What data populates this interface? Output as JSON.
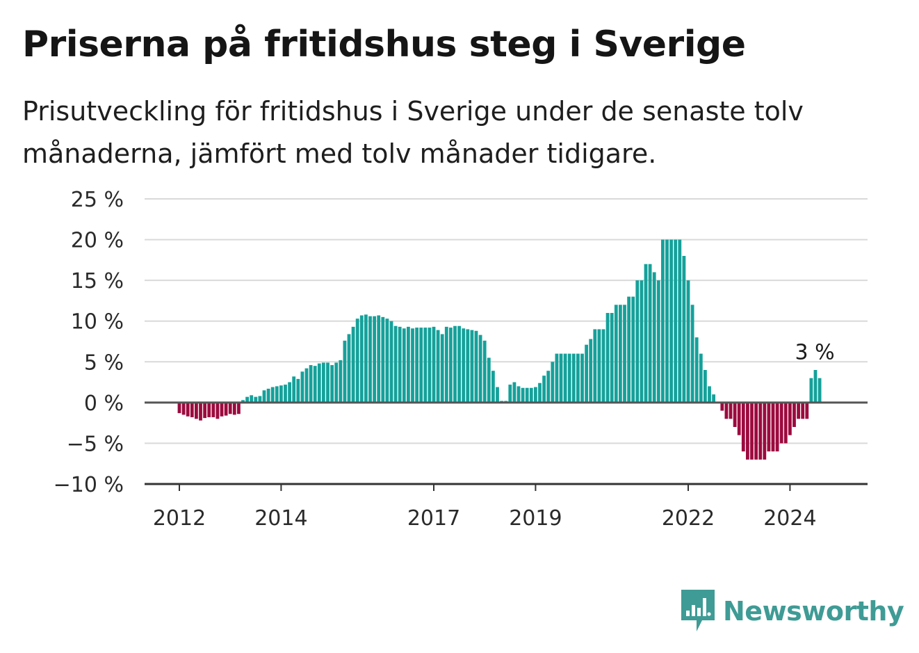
{
  "title": "Priserna på fritidshus steg i Sverige",
  "subtitle": "Prisutveckling för fritidshus i Sverige under de senaste tolv månaderna, jämfört med tolv månader tidigare.",
  "logo": {
    "text": "Newsworthy",
    "icon": "bar-chart-speech-bubble-icon",
    "color": "#3f9b95"
  },
  "colors": {
    "positive": "#15a19a",
    "negative": "#9c0a3e",
    "grid": "#d9d9d9",
    "zero_line": "#555555"
  },
  "chart_data": {
    "type": "bar",
    "title": "Priserna på fritidshus steg i Sverige",
    "xlabel": "",
    "ylabel": "",
    "ylim": [
      -10,
      25
    ],
    "y_ticks": [
      {
        "value": 25,
        "label": "25 %"
      },
      {
        "value": 20,
        "label": "20 %"
      },
      {
        "value": 15,
        "label": "15 %"
      },
      {
        "value": 10,
        "label": "10 %"
      },
      {
        "value": 5,
        "label": "5 %"
      },
      {
        "value": 0,
        "label": "0 %"
      },
      {
        "value": -5,
        "label": "−5 %"
      },
      {
        "value": -10,
        "label": "−10 %"
      }
    ],
    "x_ticks": [
      {
        "value": 2012.0,
        "label": "2012"
      },
      {
        "value": 2014.0,
        "label": "2014"
      },
      {
        "value": 2017.0,
        "label": "2017"
      },
      {
        "value": 2019.0,
        "label": "2019"
      },
      {
        "value": 2022.0,
        "label": "2022"
      },
      {
        "value": 2024.0,
        "label": "2024"
      }
    ],
    "x_start": "2012-01",
    "frequency": "monthly",
    "grid": true,
    "values": [
      -1.3,
      -1.5,
      -1.7,
      -1.8,
      -2.0,
      -2.2,
      -1.9,
      -1.8,
      -1.8,
      -2.0,
      -1.7,
      -1.6,
      -1.4,
      -1.5,
      -1.4,
      0.3,
      0.7,
      0.9,
      0.7,
      0.8,
      1.5,
      1.7,
      1.9,
      2.0,
      2.1,
      2.2,
      2.5,
      3.2,
      2.9,
      3.8,
      4.2,
      4.6,
      4.5,
      4.8,
      4.9,
      4.9,
      4.6,
      4.9,
      5.2,
      7.6,
      8.4,
      9.3,
      10.3,
      10.7,
      10.8,
      10.6,
      10.6,
      10.7,
      10.5,
      10.3,
      10.0,
      9.4,
      9.3,
      9.1,
      9.3,
      9.1,
      9.2,
      9.2,
      9.2,
      9.2,
      9.3,
      8.9,
      8.4,
      9.3,
      9.2,
      9.4,
      9.4,
      9.1,
      9.0,
      8.9,
      8.8,
      8.3,
      7.6,
      5.5,
      3.9,
      1.9,
      0.2,
      0.2,
      2.2,
      2.5,
      2.0,
      1.8,
      1.8,
      1.8,
      1.9,
      2.4,
      3.3,
      3.9,
      5.0,
      6.0,
      6.0,
      6.0,
      6.0,
      6.0,
      6.0,
      6.0,
      7.1,
      7.8,
      9.0,
      9.0,
      9.0,
      11.0,
      11.0,
      12.0,
      12.0,
      12.0,
      13.0,
      13.0,
      15.0,
      15.0,
      17.0,
      17.0,
      16.0,
      15.0,
      20.0,
      20.0,
      20.0,
      20.0,
      20.0,
      18.0,
      15.0,
      12.0,
      8.0,
      6.0,
      4.0,
      2.0,
      1.0,
      0.0,
      -1.0,
      -2.0,
      -2.0,
      -3.0,
      -4.0,
      -6.0,
      -7.0,
      -7.0,
      -7.0,
      -7.0,
      -7.0,
      -6.0,
      -6.0,
      -6.0,
      -5.0,
      -5.0,
      -4.0,
      -3.0,
      -2.0,
      -2.0,
      -2.0,
      3.0,
      4.0,
      3.0
    ],
    "annotation": {
      "text": "3 %",
      "value": 3.0
    }
  }
}
